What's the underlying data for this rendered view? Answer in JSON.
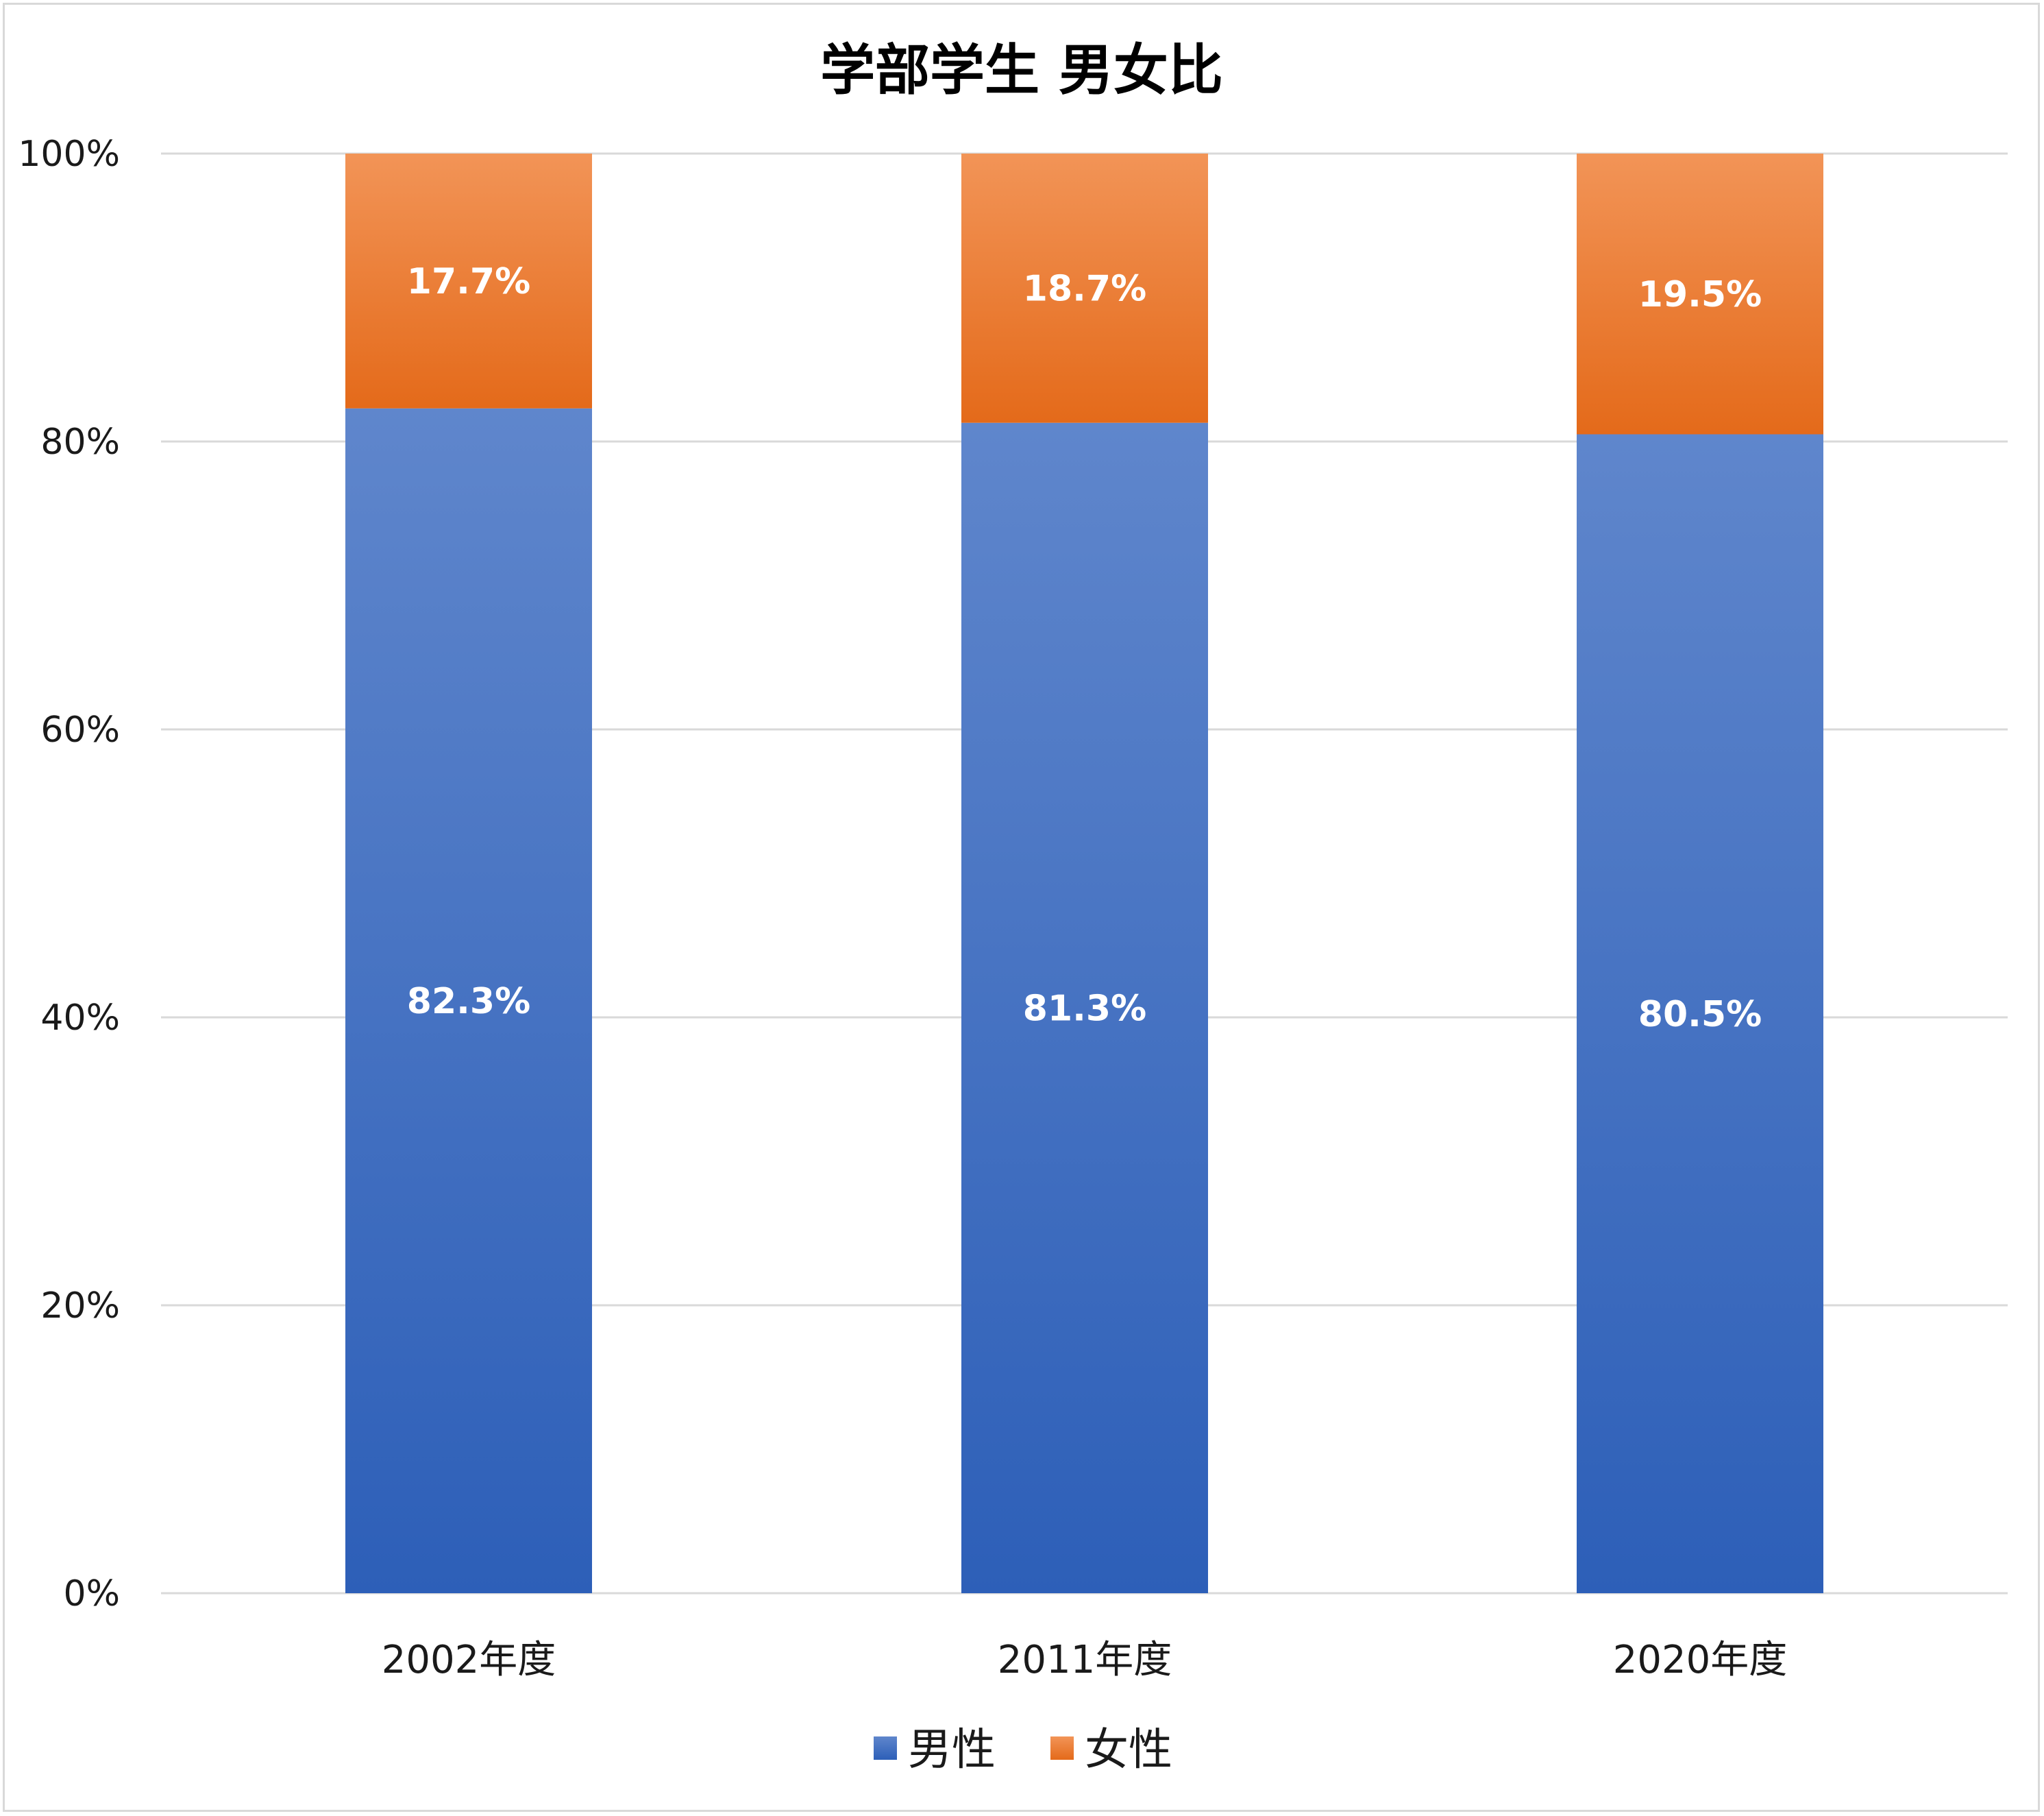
{
  "chart_data": {
    "type": "bar",
    "stacked": true,
    "percent_stacked": true,
    "title": "学部学生 男女比",
    "categories": [
      "2002年度",
      "2011年度",
      "2020年度"
    ],
    "series": [
      {
        "name": "男性",
        "values": [
          82.3,
          81.3,
          80.5
        ],
        "labels": [
          "82.3%",
          "81.3%",
          "80.5%"
        ],
        "color_top": "#5f86cc",
        "color_bottom": "#2d5fb8"
      },
      {
        "name": "女性",
        "values": [
          17.7,
          18.7,
          19.5
        ],
        "labels": [
          "17.7%",
          "18.7%",
          "19.5%"
        ],
        "color_top": "#f29457",
        "color_bottom": "#e46a1a"
      }
    ],
    "ylim": [
      0,
      100
    ],
    "yticks": [
      "0%",
      "20%",
      "40%",
      "60%",
      "80%",
      "100%"
    ],
    "grid": true,
    "legend": "bottom"
  }
}
